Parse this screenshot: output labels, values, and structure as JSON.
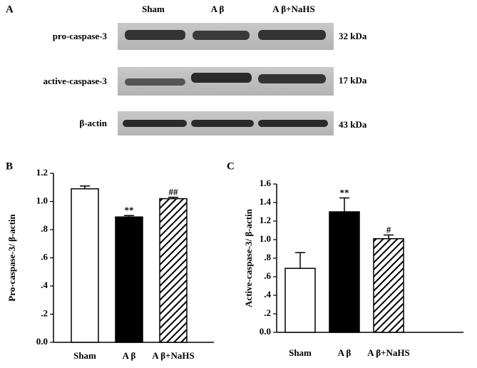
{
  "panel_a": {
    "label": "A",
    "columns": [
      "Sham",
      "A β",
      "A β+NaHS"
    ],
    "rows": [
      {
        "name": "pro-caspase-3",
        "size": "32 kDa"
      },
      {
        "name": "active-caspase-3",
        "size": "17 kDa"
      },
      {
        "name": "β-actin",
        "size": "43 kDa"
      }
    ]
  },
  "chart_data": [
    {
      "type": "bar",
      "panel": "B",
      "ylabel": "Pro-caspase-3/ β-actin",
      "categories": [
        "Sham",
        "A β",
        "A β+NaHS"
      ],
      "values": [
        1.09,
        0.89,
        1.02
      ],
      "errors": [
        0.02,
        0.01,
        0.01
      ],
      "annotations": [
        null,
        "**",
        "##"
      ],
      "fills": [
        "white",
        "black",
        "hatch"
      ],
      "ylim": [
        0,
        1.2
      ],
      "yticks": [
        {
          "value": 0,
          "label": "0.0"
        },
        {
          "value": 0.2,
          "label": ".2"
        },
        {
          "value": 0.4,
          "label": ".4"
        },
        {
          "value": 0.6,
          "label": ".6"
        },
        {
          "value": 0.8,
          "label": ".8"
        },
        {
          "value": 1,
          "label": "1.0"
        },
        1.2
      ]
    },
    {
      "type": "bar",
      "panel": "C",
      "ylabel": "Active-caspase-3/ β-actin",
      "categories": [
        "Sham",
        "A β",
        "A β+NaHS"
      ],
      "values": [
        0.69,
        1.3,
        1.01
      ],
      "errors": [
        0.17,
        0.15,
        0.04
      ],
      "annotations": [
        null,
        "**",
        "#"
      ],
      "fills": [
        "white",
        "black",
        "hatch"
      ],
      "ylim": [
        0,
        1.6
      ],
      "yticks": [
        {
          "value": 0,
          "label": "0.0"
        },
        {
          "value": 0.2,
          "label": ".2"
        },
        {
          "value": 0.4,
          "label": ".4"
        },
        {
          "value": 0.6,
          "label": ".6"
        },
        {
          "value": 0.8,
          "label": ".8"
        },
        {
          "value": 1,
          "label": "1.0"
        },
        1.2,
        1.4,
        1.6
      ]
    }
  ]
}
